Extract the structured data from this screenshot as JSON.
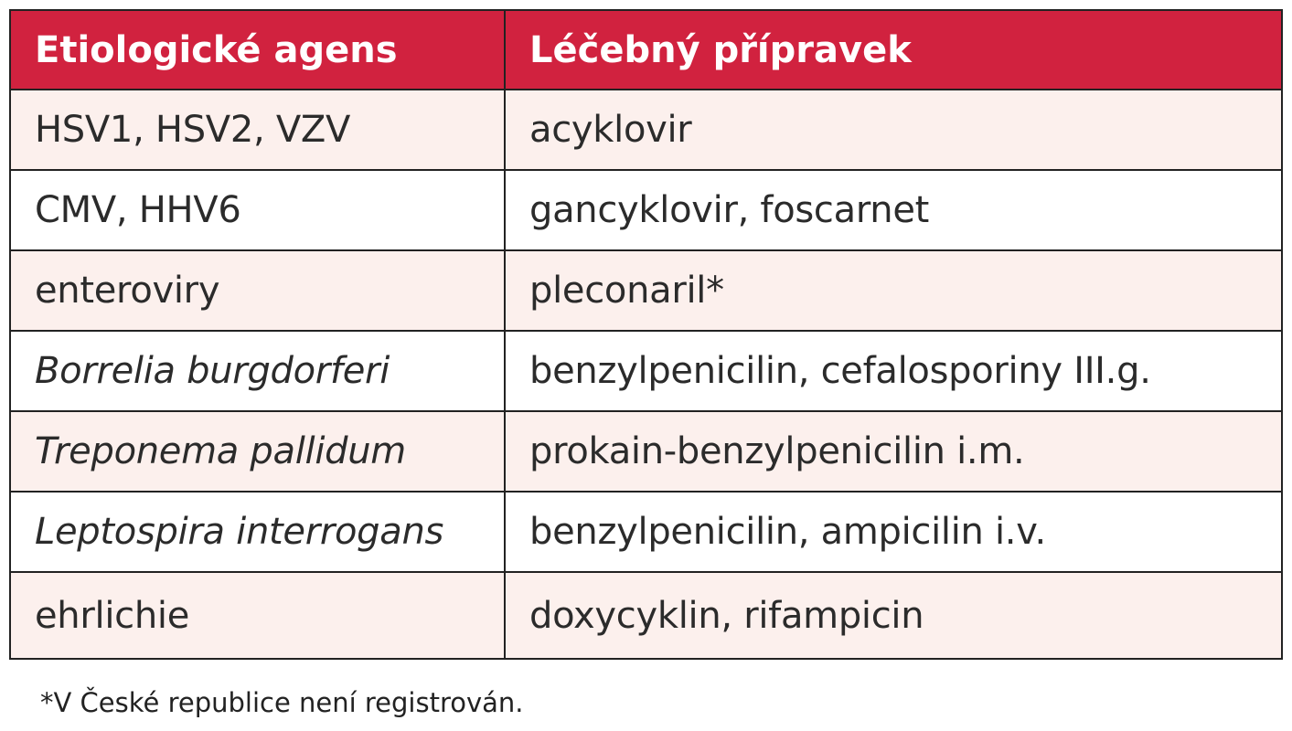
{
  "table": {
    "header": [
      "Etiologické agens",
      "Léčebný přípravek"
    ],
    "rows": [
      [
        "HSV1, HSV2, VZV",
        "acyklovir"
      ],
      [
        "CMV, HHV6",
        "gancyklovir, foscarnet"
      ],
      [
        "enteroviry",
        "pleconaril*"
      ],
      [
        "Borrelia burgdorferi",
        "benzylpenicilin, cefalosporiny III.g."
      ],
      [
        "Treponema pallidum",
        "prokain-benzylpenicilin i.m."
      ],
      [
        "Leptospira interrogans",
        "benzylpenicilin, ampicilin i.v."
      ],
      [
        "ehrlichie",
        "doxycyklin, rifampicin"
      ]
    ]
  },
  "footnote": "*V České republice není registrován."
}
